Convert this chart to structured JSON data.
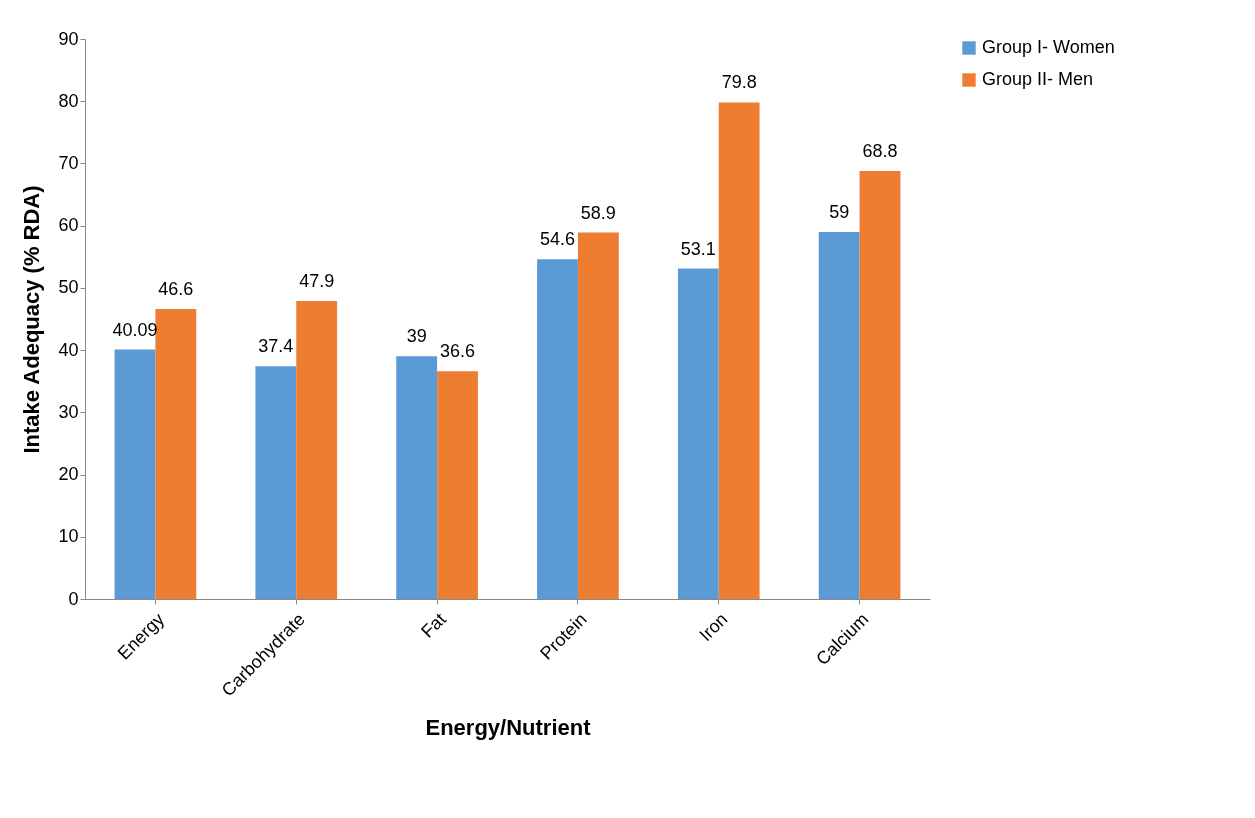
{
  "chart_data": {
    "type": "bar",
    "xlabel": "Energy/Nutrient",
    "ylabel": "Intake Adequacy (% RDA)",
    "categories": [
      "Energy",
      "Carbohydrate",
      "Fat",
      "Protein",
      "Iron",
      "Calcium"
    ],
    "series": [
      {
        "name": "Group I- Women",
        "color": "#5b9bd5",
        "values": [
          40.09,
          37.4,
          39,
          54.6,
          53.1,
          59
        ]
      },
      {
        "name": "Group II- Men",
        "color": "#ed7d31",
        "values": [
          46.6,
          47.9,
          36.6,
          58.9,
          79.8,
          68.8
        ]
      }
    ],
    "ylim": [
      0,
      90
    ],
    "yticks": [
      0,
      10,
      20,
      30,
      40,
      50,
      60,
      70,
      80,
      90
    ],
    "grid": false,
    "legend": "right",
    "data_labels": true
  }
}
